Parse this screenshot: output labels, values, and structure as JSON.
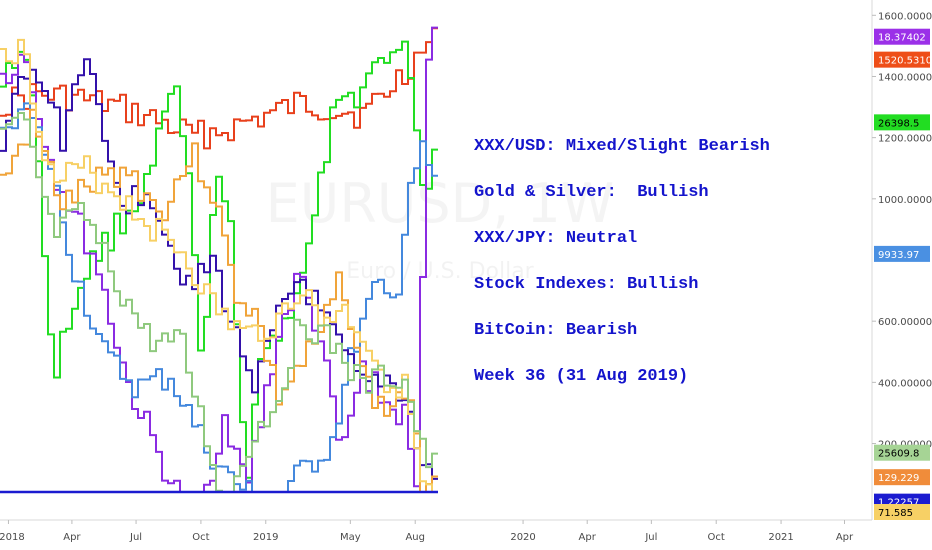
{
  "chart_data": {
    "type": "line",
    "watermark": {
      "symbol": "EURUSD, 1W",
      "name": "Euro / U.S. Dollar"
    },
    "y_axis": {
      "ylim": [
        -50,
        1650
      ],
      "ticks": [
        "200.00000",
        "400.00000",
        "600.00000",
        "1000.00000",
        "1200.00000",
        "1400.00000",
        "1600.00000"
      ],
      "tick_values": [
        200,
        400,
        600,
        1000,
        1200,
        1400,
        1600
      ]
    },
    "x_axis": {
      "ticks": [
        "2018",
        "Apr",
        "Jul",
        "Oct",
        "2019",
        "May",
        "Aug",
        "2020",
        "Apr",
        "Jul",
        "Oct",
        "2021",
        "Apr"
      ],
      "tick_dates": [
        "2018-01-01",
        "2018-04-01",
        "2018-07-01",
        "2018-10-01",
        "2019-01-01",
        "2019-05-01",
        "2019-08-01",
        "2020-01-01",
        "2020-04-01",
        "2020-07-01",
        "2020-10-01",
        "2021-01-01",
        "2021-04-01"
      ],
      "xlim": [
        "2017-12-20",
        "2021-05-10"
      ]
    },
    "grid": false,
    "annotations": [
      "XXX/USD: Mixed/Slight Bearish",
      "Gold & Silver:  Bullish",
      "XXX/JPY: Neutral",
      "Stock Indexes: Bullish",
      "BitCoin: Bearish",
      "Week 36 (31 Aug 2019)"
    ],
    "series": [
      {
        "color": "#e8401c",
        "last_value": "1520.53100",
        "x": [
          "2017-12-20",
          "2018-02-01",
          "2018-04-01",
          "2018-06-01",
          "2018-08-01",
          "2018-09-15",
          "2018-11-01",
          "2018-12-15",
          "2019-02-15",
          "2019-04-01",
          "2019-05-15",
          "2019-06-15",
          "2019-07-15",
          "2019-08-15",
          "2019-08-31"
        ],
        "y": [
          1310,
          1340,
          1330,
          1300,
          1250,
          1205,
          1225,
          1260,
          1310,
          1295,
          1275,
          1340,
          1420,
          1500,
          1520
        ]
      },
      {
        "color": "#22dd22",
        "last_value": "26398.5",
        "x": [
          "2017-12-20",
          "2018-01-20",
          "2018-02-10",
          "2018-03-01",
          "2018-04-15",
          "2018-06-01",
          "2018-07-15",
          "2018-08-20",
          "2018-09-10",
          "2018-10-01",
          "2018-10-20",
          "2018-11-10",
          "2018-12-01",
          "2018-12-20",
          "2019-01-20",
          "2019-03-01",
          "2019-04-01",
          "2019-05-15",
          "2019-06-15",
          "2019-07-20",
          "2019-08-10",
          "2019-08-31"
        ],
        "y": [
          1410,
          1500,
          1130,
          420,
          760,
          910,
          1050,
          1380,
          1050,
          400,
          1150,
          860,
          0,
          520,
          560,
          840,
          1250,
          1370,
          1480,
          1470,
          990,
          1250
        ]
      },
      {
        "color": "#8a2be2",
        "last_value": "18.37402",
        "x": [
          "2017-12-20",
          "2018-01-20",
          "2018-03-01",
          "2018-05-01",
          "2018-06-15",
          "2018-08-01",
          "2018-09-01",
          "2018-10-01",
          "2018-11-01",
          "2018-12-01",
          "2019-01-15",
          "2019-02-15",
          "2019-03-15",
          "2019-04-15",
          "2019-05-15",
          "2019-06-15",
          "2019-07-15",
          "2019-08-01",
          "2019-08-15",
          "2019-08-31"
        ],
        "y": [
          1400,
          1470,
          1100,
          800,
          400,
          150,
          0,
          0,
          300,
          50,
          550,
          750,
          550,
          150,
          450,
          330,
          280,
          0,
          1500,
          1530
        ]
      },
      {
        "color": "#4488dd",
        "last_value": "9933.97",
        "x": [
          "2017-12-20",
          "2018-01-20",
          "2018-02-20",
          "2018-04-01",
          "2018-05-15",
          "2018-07-01",
          "2018-08-15",
          "2018-10-01",
          "2018-11-01",
          "2018-12-01",
          "2019-01-01",
          "2019-02-01",
          "2019-03-01",
          "2019-04-01",
          "2019-05-01",
          "2019-06-01",
          "2019-07-01",
          "2019-07-20",
          "2019-08-10",
          "2019-08-31"
        ],
        "y": [
          1250,
          1300,
          1150,
          770,
          480,
          380,
          420,
          200,
          100,
          40,
          0,
          60,
          130,
          200,
          500,
          700,
          650,
          1050,
          1150,
          990
        ]
      },
      {
        "color": "#3311aa",
        "last_value": "1.22257",
        "x": [
          "2017-12-20",
          "2018-01-15",
          "2018-02-15",
          "2018-03-15",
          "2018-04-15",
          "2018-05-15",
          "2018-06-15",
          "2018-07-15",
          "2018-08-15",
          "2018-09-15",
          "2018-10-15",
          "2018-11-15",
          "2018-12-15",
          "2019-01-15",
          "2019-02-15",
          "2019-03-15",
          "2019-04-15",
          "2019-05-15",
          "2019-06-15",
          "2019-07-15",
          "2019-08-10",
          "2019-08-31"
        ],
        "y": [
          1150,
          1400,
          1380,
          1200,
          1500,
          1150,
          980,
          1050,
          850,
          700,
          800,
          550,
          400,
          600,
          750,
          620,
          500,
          380,
          420,
          350,
          100,
          110
        ]
      },
      {
        "color": "#f0a43a",
        "last_value": "129.229",
        "x": [
          "2017-12-20",
          "2018-02-01",
          "2018-03-15",
          "2018-05-01",
          "2018-06-15",
          "2018-08-01",
          "2018-09-15",
          "2018-10-15",
          "2018-11-15",
          "2018-12-15",
          "2019-01-15",
          "2019-02-15",
          "2019-03-15",
          "2019-04-15",
          "2019-05-15",
          "2019-06-15",
          "2019-07-15",
          "2019-08-10",
          "2019-08-31"
        ],
        "y": [
          1050,
          1250,
          980,
          1050,
          1100,
          950,
          1150,
          1020,
          700,
          620,
          350,
          450,
          540,
          760,
          420,
          300,
          380,
          60,
          150
        ]
      },
      {
        "color": "#f7d065",
        "last_value": "71.585",
        "x": [
          "2017-12-20",
          "2018-01-20",
          "2018-03-01",
          "2018-04-15",
          "2018-06-01",
          "2018-07-15",
          "2018-09-01",
          "2018-10-15",
          "2018-12-01",
          "2019-01-15",
          "2019-02-15",
          "2019-03-15",
          "2019-04-15",
          "2019-05-15",
          "2019-06-15",
          "2019-07-15",
          "2019-08-10",
          "2019-08-31"
        ],
        "y": [
          1500,
          1480,
          1050,
          1100,
          1020,
          920,
          830,
          650,
          550,
          600,
          720,
          600,
          640,
          560,
          420,
          380,
          30,
          20
        ]
      },
      {
        "color": "#8fc97e",
        "last_value": "25609.8",
        "x": [
          "2017-12-20",
          "2018-01-20",
          "2018-03-01",
          "2018-04-15",
          "2018-06-01",
          "2018-07-15",
          "2018-09-01",
          "2018-10-01",
          "2018-11-01",
          "2018-12-01",
          "2019-01-15",
          "2019-02-15",
          "2019-03-15",
          "2019-04-15",
          "2019-05-15",
          "2019-06-15",
          "2019-07-15",
          "2019-08-10",
          "2019-08-31"
        ],
        "y": [
          1200,
          1250,
          880,
          950,
          720,
          540,
          520,
          250,
          0,
          180,
          350,
          600,
          560,
          490,
          380,
          420,
          400,
          150,
          120
        ]
      },
      {
        "color": "#1b1bd0",
        "last_value": "",
        "x": [
          "2017-12-20",
          "2019-08-31"
        ],
        "y": [
          0,
          0
        ]
      }
    ],
    "badges": [
      {
        "label": "18.37402",
        "bg": "#9b30e8",
        "fg": "#ffffff",
        "y": 1530
      },
      {
        "label": "1520.53100",
        "bg": "#ee4e18",
        "fg": "#ffffff",
        "y": 1455
      },
      {
        "label": "26398.5",
        "bg": "#22dd22",
        "fg": "#000000",
        "y": 1250
      },
      {
        "label": "9933.97",
        "bg": "#4a90e2",
        "fg": "#ffffff",
        "y": 820
      },
      {
        "label": "25609.8",
        "bg": "#a6d495",
        "fg": "#000000",
        "y": 170
      },
      {
        "label": "129.229",
        "bg": "#f08c3a",
        "fg": "#ffffff",
        "y": 90
      },
      {
        "label": "1.22257",
        "bg": "#1b1bd0",
        "fg": "#ffffff",
        "y": 10
      },
      {
        "label": "71.585",
        "bg": "#f7d065",
        "fg": "#000000",
        "y": -70
      }
    ]
  }
}
